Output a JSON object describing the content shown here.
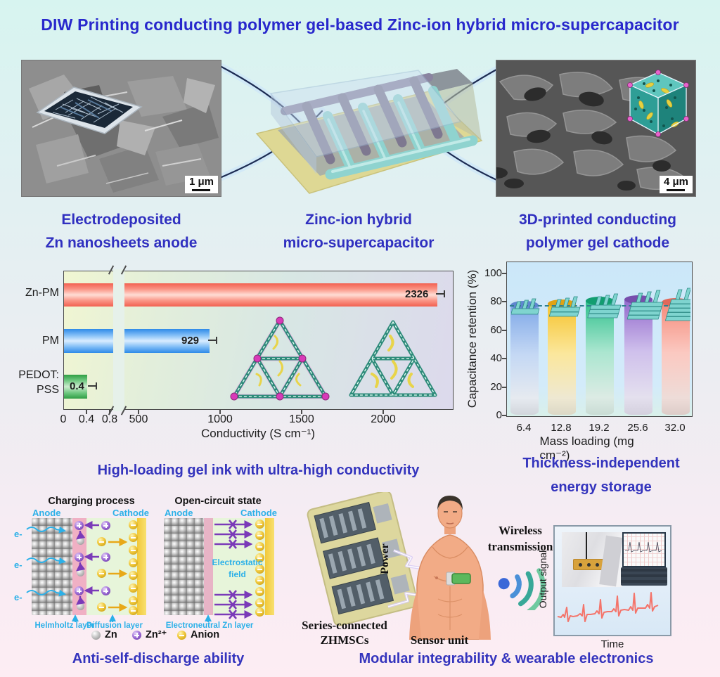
{
  "title": "DIW Printing conducting polymer gel-based Zinc-ion hybrid micro-supercapacitor",
  "panels": {
    "anode": {
      "caption_line1": "Electrodeposited",
      "caption_line2": "Zn nanosheets anode",
      "scale_bar": "1 μm"
    },
    "device": {
      "caption_line1": "Zinc-ion hybrid",
      "caption_line2": "micro-supercapacitor"
    },
    "cathode": {
      "caption_line1": "3D-printed conducting",
      "caption_line2": "polymer gel cathode",
      "scale_bar": "4 μm"
    }
  },
  "chart_data": [
    {
      "type": "bar",
      "orientation": "horizontal",
      "categories": [
        "Zn-PM",
        "PM",
        "PEDOT:PSS"
      ],
      "category_display": [
        "Zn-PM",
        "PM",
        "PEDOT:",
        "PSS"
      ],
      "values": [
        2326,
        929,
        0.4
      ],
      "value_labels": [
        "2326",
        "929",
        "0.4"
      ],
      "colors": [
        "#f87c6e",
        "#55aaf0",
        "#4cb85c"
      ],
      "xlabel": "Conductivity (S cm⁻¹)",
      "x_ticks": [
        "0",
        "0.4",
        "0.8",
        "500",
        "1000",
        "1500",
        "2000"
      ],
      "axis_break_between": [
        0.8,
        500
      ],
      "grid": false,
      "caption": "High-loading gel ink with ultra-high conductivity"
    },
    {
      "type": "bar",
      "orientation": "vertical",
      "categories": [
        "6.4",
        "12.8",
        "19.2",
        "25.6",
        "32.0"
      ],
      "values": [
        77,
        78,
        80,
        81,
        79
      ],
      "colors": [
        "#7fa8e8",
        "#f6c32c",
        "#2fc08c",
        "#9268cc",
        "#f58a7a"
      ],
      "ylabel": "Capacitance retention (%)",
      "xlabel": "Mass loading (mg cm⁻²)",
      "ylim": [
        0,
        100
      ],
      "y_ticks": [
        "0",
        "20",
        "40",
        "60",
        "80",
        "100"
      ],
      "dashed_reference_line": 76,
      "grid": false,
      "caption_line1": "Thickness-independent",
      "caption_line2": "energy storage"
    }
  ],
  "discharge": {
    "panel1_title": "Charging process",
    "panel2_title": "Open-circuit state",
    "anode": "Anode",
    "cathode": "Cathode",
    "electron": "e-",
    "helmholtz": "Helmholtz layer",
    "diffusion": "Diffusion layer",
    "electroneutral": "Electroneutral Zn layer",
    "electrostatic_line1": "Electrostatic",
    "electrostatic_line2": "field",
    "legend": [
      {
        "label": "Zn"
      },
      {
        "label": "Zn²⁺"
      },
      {
        "label": "Anion"
      }
    ],
    "caption": "Anti-self-discharge ability"
  },
  "wearable": {
    "power_label": "Power",
    "wireless_line1": "Wireless",
    "wireless_line2": "transmission",
    "source_line1": "Series-connected",
    "source_line2": "ZHMSCs",
    "sensor_label": "Sensor unit",
    "signal_ylabel": "Output signal",
    "signal_xlabel": "Time",
    "caption": "Modular integrability & wearable electronics"
  }
}
